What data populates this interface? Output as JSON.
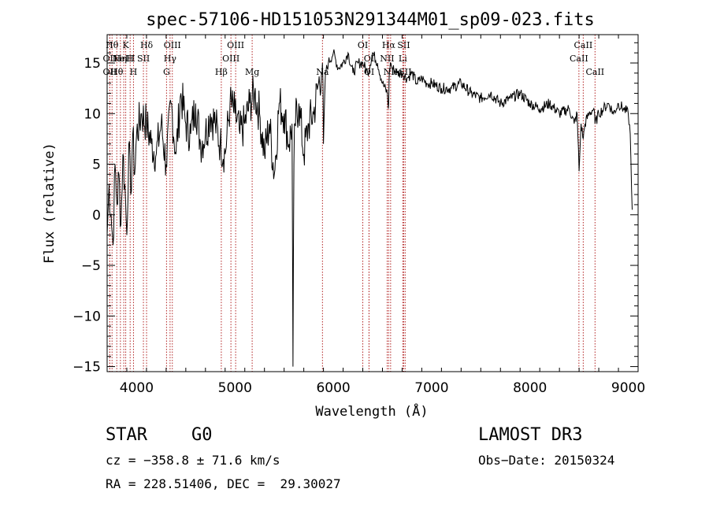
{
  "chart_data": {
    "type": "line",
    "title": "spec-57106-HD151053N291344M01_sp09-023.fits",
    "xlabel": "Wavelength (Å)",
    "ylabel": "Flux (relative)",
    "xlim": [
      3700,
      9100
    ],
    "ylim": [
      -15.5,
      17.8
    ],
    "x_ticks": [
      4000,
      5000,
      6000,
      7000,
      8000,
      9000
    ],
    "y_ticks": [
      -15,
      -10,
      -5,
      0,
      5,
      10,
      15
    ],
    "series": [
      {
        "name": "spectrum",
        "x": [
          3700,
          3720,
          3740,
          3760,
          3780,
          3800,
          3820,
          3840,
          3860,
          3880,
          3900,
          3920,
          3940,
          3960,
          3980,
          4000,
          4050,
          4100,
          4150,
          4200,
          4250,
          4300,
          4350,
          4400,
          4450,
          4500,
          4550,
          4600,
          4650,
          4700,
          4750,
          4800,
          4850,
          4900,
          4950,
          5000,
          5050,
          5100,
          5150,
          5200,
          5250,
          5300,
          5350,
          5400,
          5450,
          5500,
          5550,
          5580,
          5590,
          5600,
          5610,
          5650,
          5700,
          5750,
          5800,
          5850,
          5880,
          5890,
          5900,
          5920,
          5950,
          6000,
          6050,
          6100,
          6150,
          6200,
          6250,
          6300,
          6350,
          6400,
          6450,
          6500,
          6550,
          6560,
          6565,
          6570,
          6580,
          6600,
          6650,
          6700,
          6750,
          6800,
          6850,
          6900,
          6950,
          7000,
          7100,
          7200,
          7300,
          7400,
          7500,
          7600,
          7700,
          7800,
          7900,
          8000,
          8100,
          8200,
          8300,
          8400,
          8450,
          8480,
          8500,
          8520,
          8542,
          8560,
          8600,
          8650,
          8662,
          8700,
          8750,
          8800,
          8850,
          8900,
          8950,
          9000,
          9020,
          9040
        ],
        "y": [
          -2,
          3,
          0,
          -3,
          5,
          1,
          4,
          -1,
          6,
          3,
          -2,
          7,
          2,
          8,
          4,
          8,
          10,
          9,
          7,
          6,
          9,
          5,
          11,
          6,
          12,
          9,
          8,
          11,
          7,
          8,
          10,
          9,
          7,
          6,
          11,
          10,
          8,
          9,
          11,
          12,
          10,
          6,
          9,
          4,
          11,
          10,
          7,
          9,
          -15,
          5,
          9,
          11,
          6,
          9,
          10,
          13,
          14,
          15,
          7,
          14,
          15,
          16,
          14.5,
          15,
          16,
          14,
          15,
          15,
          14,
          16,
          15,
          13,
          12,
          10.5,
          12,
          14,
          15,
          14.5,
          14,
          14,
          13.5,
          14,
          13,
          13.5,
          13,
          13,
          12.5,
          12.5,
          13,
          12,
          11.5,
          12,
          11,
          11.5,
          12,
          11,
          10.5,
          11,
          10,
          10.5,
          9,
          10,
          4.3,
          9,
          7.5,
          9,
          10,
          10.5,
          9,
          10,
          10.5,
          11,
          10,
          11,
          10.5,
          10,
          8,
          0.5
        ]
      }
    ],
    "line_markers": [
      {
        "row": 1,
        "x": 3750,
        "label": "Hθ"
      },
      {
        "row": 1,
        "x": 3889,
        "label": "K"
      },
      {
        "row": 1,
        "x": 4101,
        "label": "Hδ"
      },
      {
        "row": 1,
        "x": 4363,
        "label": "OIII"
      },
      {
        "row": 1,
        "x": 5007,
        "label": "OIII"
      },
      {
        "row": 1,
        "x": 6300,
        "label": "OI"
      },
      {
        "row": 1,
        "x": 6563,
        "label": "Hα"
      },
      {
        "row": 1,
        "x": 6716,
        "label": "SII"
      },
      {
        "row": 1,
        "x": 8542,
        "label": "CaII"
      },
      {
        "row": 2,
        "x": 3727,
        "label": "OII"
      },
      {
        "row": 2,
        "x": 3835,
        "label": "Hη"
      },
      {
        "row": 2,
        "x": 3869,
        "label": "NeIII"
      },
      {
        "row": 2,
        "x": 3934,
        "label": "H"
      },
      {
        "row": 2,
        "x": 4069,
        "label": "SII"
      },
      {
        "row": 2,
        "x": 4340,
        "label": "Hγ"
      },
      {
        "row": 2,
        "x": 4959,
        "label": "OIII"
      },
      {
        "row": 2,
        "x": 6363,
        "label": "OI"
      },
      {
        "row": 2,
        "x": 6548,
        "label": "NII"
      },
      {
        "row": 2,
        "x": 6707,
        "label": "Li"
      },
      {
        "row": 2,
        "x": 8498,
        "label": "CaII"
      },
      {
        "row": 3,
        "x": 3727,
        "label": "OII"
      },
      {
        "row": 3,
        "x": 3798,
        "label": "Hθ"
      },
      {
        "row": 3,
        "x": 3968,
        "label": "H"
      },
      {
        "row": 3,
        "x": 4304,
        "label": "G"
      },
      {
        "row": 3,
        "x": 4861,
        "label": "Hβ"
      },
      {
        "row": 3,
        "x": 5175,
        "label": "Mg"
      },
      {
        "row": 3,
        "x": 5890,
        "label": "Na"
      },
      {
        "row": 3,
        "x": 6364,
        "label": "OI"
      },
      {
        "row": 3,
        "x": 6583,
        "label": "NII"
      },
      {
        "row": 3,
        "x": 6731,
        "label": "SII"
      },
      {
        "row": 3,
        "x": 8662,
        "label": "CaII"
      }
    ]
  },
  "info": {
    "class": "STAR",
    "subclass": "G0",
    "survey": "LAMOST DR3",
    "cz": "cz = −358.8 ± 71.6 km/s",
    "obs_date": "Obs−Date: 20150324",
    "coords": "RA = 228.51406, DEC =  29.30027"
  },
  "colors": {
    "line": "#000000",
    "marker": "#b22222",
    "axis": "#000000"
  }
}
